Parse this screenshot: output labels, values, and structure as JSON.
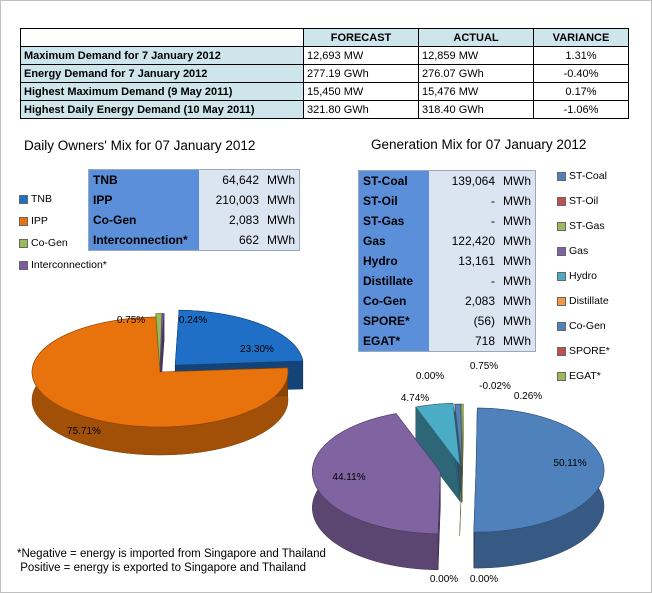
{
  "summary": {
    "headers": [
      "",
      "FORECAST",
      "ACTUAL",
      "VARIANCE"
    ],
    "rows": [
      {
        "label": "Maximum Demand for 7 January 2012",
        "forecast": "12,693  MW",
        "actual": "12,859  MW",
        "variance": "1.31%"
      },
      {
        "label": "Energy Demand for 7 January 2012",
        "forecast": "277.19  GWh",
        "actual": "276.07  GWh",
        "variance": "-0.40%"
      },
      {
        "label": "Highest Maximum Demand (9 May 2011)",
        "forecast": "15,450  MW",
        "actual": "15,476  MW",
        "variance": "0.17%"
      },
      {
        "label": "Highest Daily Energy Demand (10 May 2011)",
        "forecast": "321.80  GWh",
        "actual": "318.40  GWh",
        "variance": "-1.06%"
      }
    ]
  },
  "owners": {
    "title": "Daily Owners' Mix for 07 January 2012",
    "table": [
      {
        "name": "TNB",
        "value": "64,642",
        "unit": "MWh"
      },
      {
        "name": "IPP",
        "value": "210,003",
        "unit": "MWh"
      },
      {
        "name": "Co-Gen",
        "value": "2,083",
        "unit": "MWh"
      },
      {
        "name": "Interconnection*",
        "value": "662",
        "unit": "MWh"
      }
    ],
    "legend": [
      "TNB",
      "IPP",
      "Co-Gen",
      "Interconnection*"
    ]
  },
  "generation": {
    "title": "Generation Mix for 07 January 2012",
    "table": [
      {
        "name": "ST-Coal",
        "value": "139,064",
        "unit": "MWh"
      },
      {
        "name": "ST-Oil",
        "value": "-",
        "unit": "MWh"
      },
      {
        "name": "ST-Gas",
        "value": "-",
        "unit": "MWh"
      },
      {
        "name": "Gas",
        "value": "122,420",
        "unit": "MWh"
      },
      {
        "name": "Hydro",
        "value": "13,161",
        "unit": "MWh"
      },
      {
        "name": "Distillate",
        "value": "-",
        "unit": "MWh"
      },
      {
        "name": "Co-Gen",
        "value": "2,083",
        "unit": "MWh"
      },
      {
        "name": "SPORE*",
        "value": "(56)",
        "unit": "MWh"
      },
      {
        "name": "EGAT*",
        "value": "718",
        "unit": "MWh"
      }
    ],
    "legend": [
      "ST-Coal",
      "ST-Oil",
      "ST-Gas",
      "Gas",
      "Hydro",
      "Distillate",
      "Co-Gen",
      "SPORE*",
      "EGAT*"
    ]
  },
  "chart_data": [
    {
      "type": "pie",
      "categories": [
        "TNB",
        "IPP",
        "Co-Gen",
        "Interconnection*"
      ],
      "values": [
        23.3,
        75.71,
        0.75,
        0.24
      ],
      "labels": [
        "23.30%",
        "75.71%",
        "0.75%",
        "0.24%"
      ],
      "colors": [
        "#1f6fc6",
        "#e8720c",
        "#9bbb59",
        "#7c5aa6"
      ],
      "legend_position": "left"
    },
    {
      "type": "pie",
      "categories": [
        "ST-Coal",
        "ST-Oil",
        "ST-Gas",
        "Gas",
        "Hydro",
        "Distillate",
        "Co-Gen",
        "SPORE*",
        "EGAT*"
      ],
      "values": [
        50.11,
        0.0,
        0.0,
        44.11,
        4.74,
        0.0,
        0.75,
        -0.02,
        0.26
      ],
      "labels": [
        "50.11%",
        "0.00%",
        "0.00%",
        "44.11%",
        "4.74%",
        "0.00%",
        "0.75%",
        "-0.02%",
        "0.26%"
      ],
      "colors": [
        "#4f81bd",
        "#c0504d",
        "#9bbb59",
        "#8064a2",
        "#4bacc6",
        "#f79646",
        "#4f81bd",
        "#c0504d",
        "#9bbb59"
      ],
      "legend_position": "right"
    }
  ],
  "note": {
    "line1": "*Negative = energy is imported from Singapore and Thailand",
    "line2": " Positive = energy is exported to Singapore and Thailand"
  }
}
